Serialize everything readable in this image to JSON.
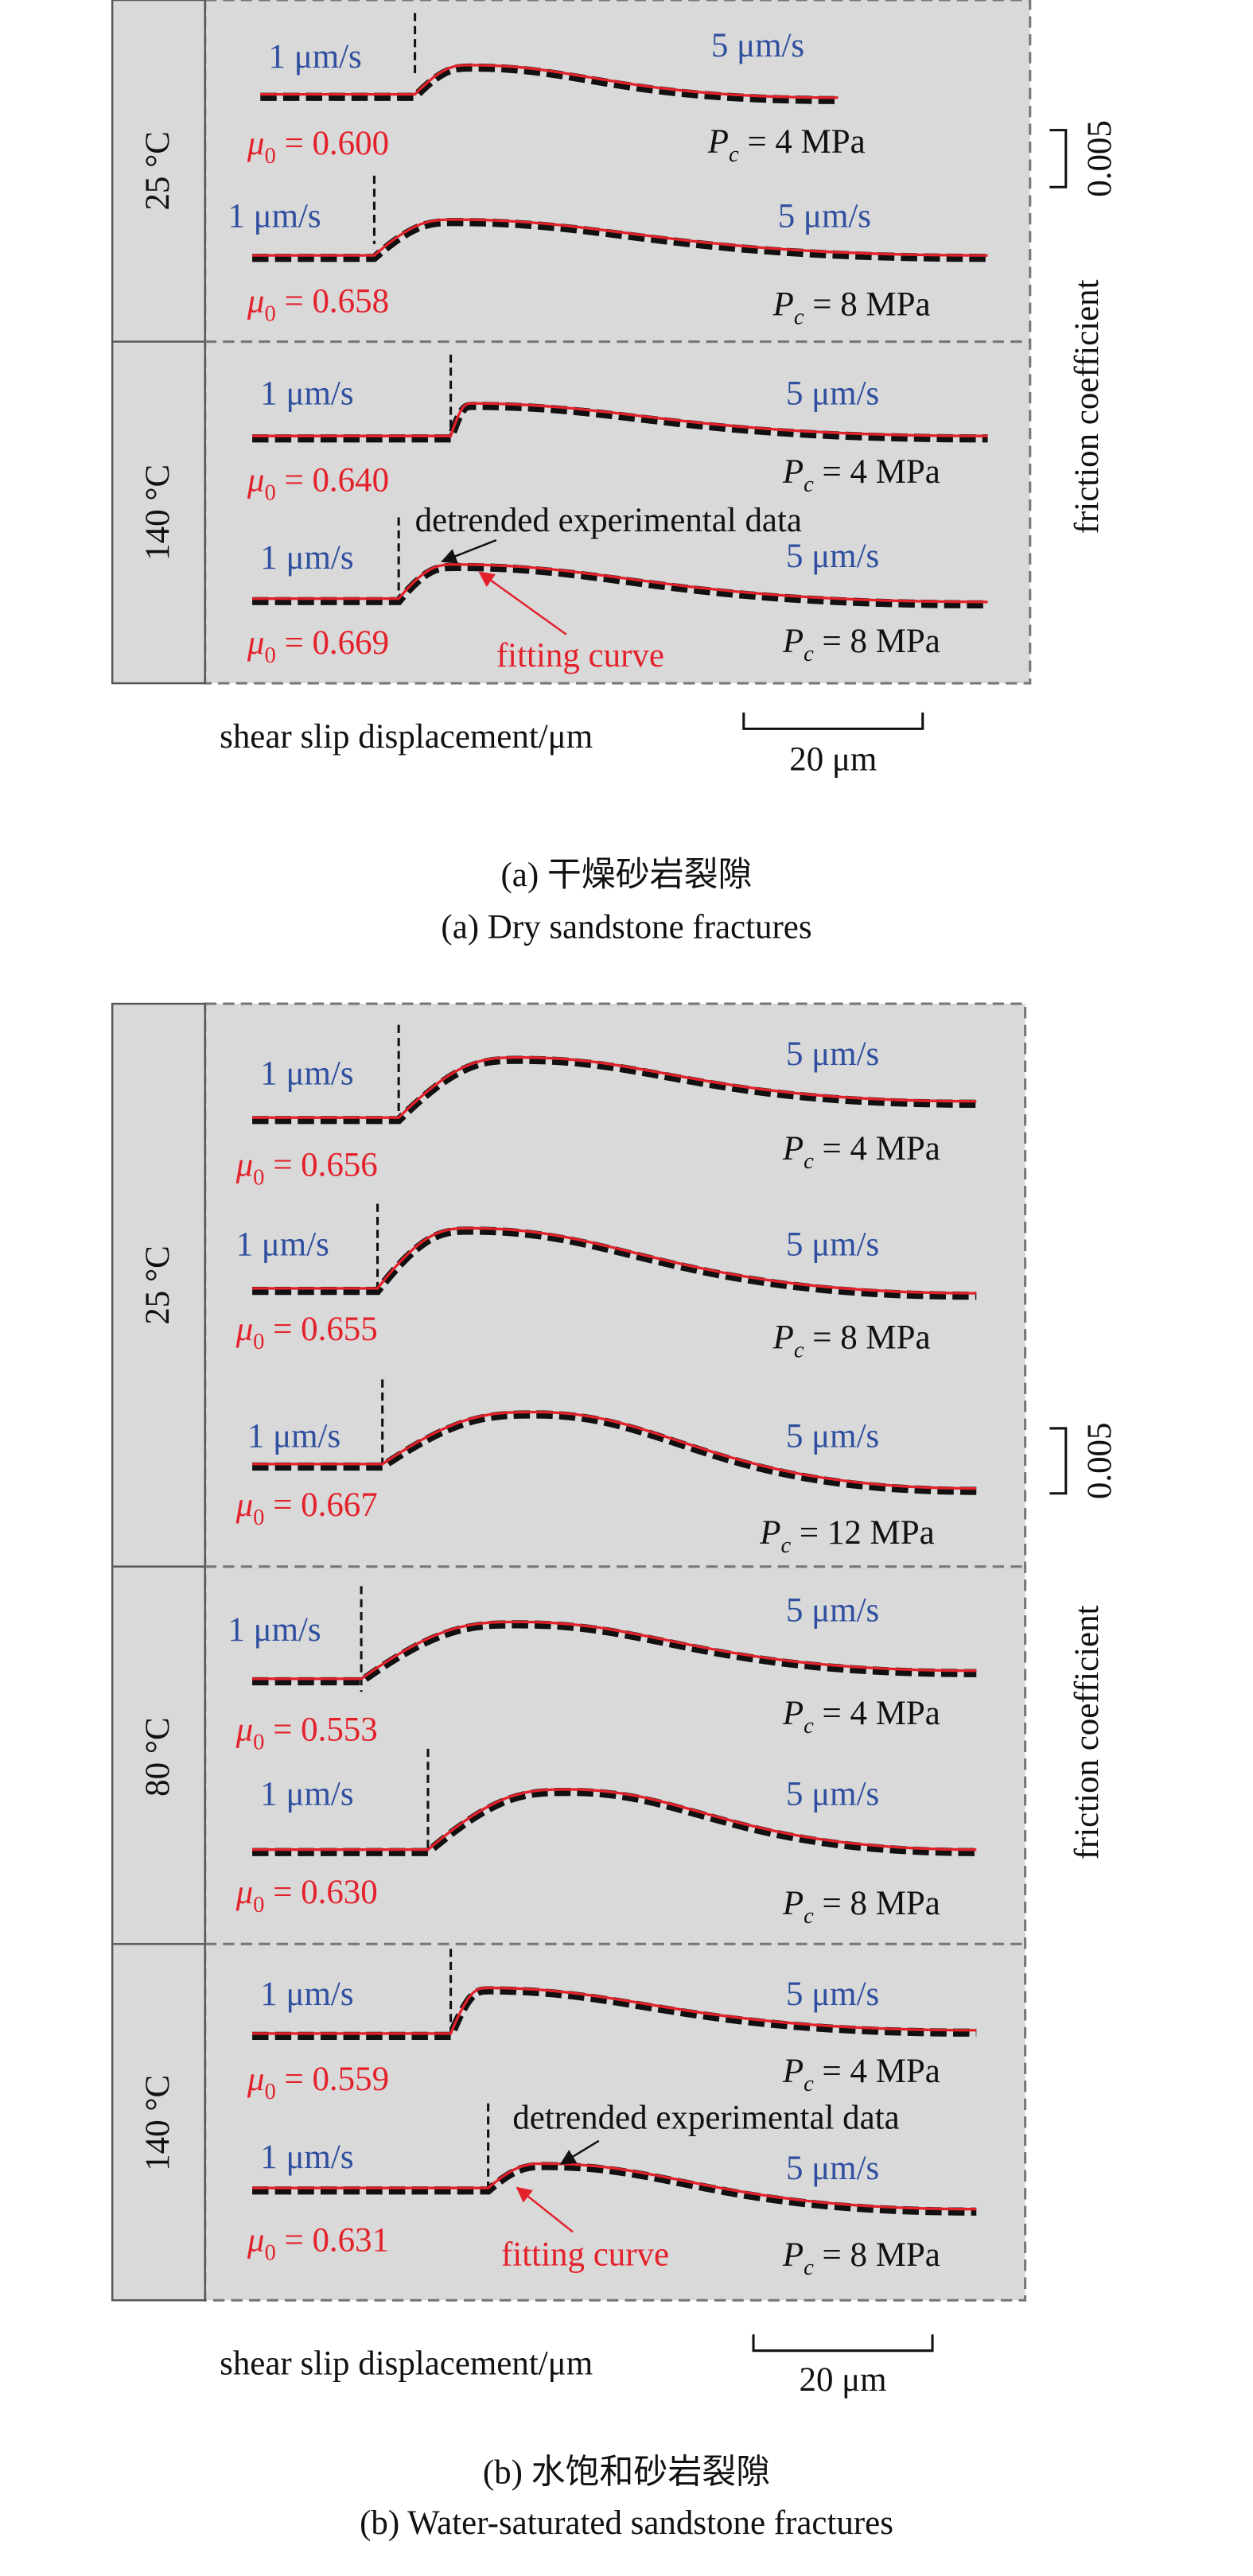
{
  "figures": [
    {
      "caption_cn": "(a) 干燥砂岩裂隙",
      "caption_en": "(a) Dry sandstone fractures",
      "x_label": "shear slip displacement/μm",
      "scale_x": "20 μm",
      "scale_y": "0.005",
      "y_label": "friction coefficient",
      "annotation_data": "detrended experimental data",
      "annotation_fit": "fitting curve",
      "groups": [
        {
          "temperature": "25 °C",
          "rows": [
            {
              "rate1": "1 μm/s",
              "rate2": "5 μm/s",
              "mu": {
                "symbol": "μ",
                "sub": "0",
                "value": " = 0.600"
              },
              "pc": {
                "symbol": "P",
                "sub": "c",
                "value": " = 4 MPa"
              }
            },
            {
              "rate1": "1 μm/s",
              "rate2": "5 μm/s",
              "mu": {
                "symbol": "μ",
                "sub": "0",
                "value": " = 0.658"
              },
              "pc": {
                "symbol": "P",
                "sub": "c",
                "value": " = 8 MPa"
              }
            }
          ]
        },
        {
          "temperature": "140 °C",
          "rows": [
            {
              "rate1": "1 μm/s",
              "rate2": "5 μm/s",
              "mu": {
                "symbol": "μ",
                "sub": "0",
                "value": " = 0.640"
              },
              "pc": {
                "symbol": "P",
                "sub": "c",
                "value": " = 4 MPa"
              }
            },
            {
              "rate1": "1 μm/s",
              "rate2": "5 μm/s",
              "mu": {
                "symbol": "μ",
                "sub": "0",
                "value": " = 0.669"
              },
              "pc": {
                "symbol": "P",
                "sub": "c",
                "value": " = 8 MPa"
              }
            }
          ]
        }
      ]
    },
    {
      "caption_cn": "(b) 水饱和砂岩裂隙",
      "caption_en": "(b) Water-saturated sandstone fractures",
      "x_label": "shear slip displacement/μm",
      "scale_x": "20 μm",
      "scale_y": "0.005",
      "y_label": "friction coefficient",
      "annotation_data": "detrended experimental data",
      "annotation_fit": "fitting curve",
      "groups": [
        {
          "temperature": "25 °C",
          "rows": [
            {
              "rate1": "1 μm/s",
              "rate2": "5 μm/s",
              "mu": {
                "symbol": "μ",
                "sub": "0",
                "value": " = 0.656"
              },
              "pc": {
                "symbol": "P",
                "sub": "c",
                "value": " = 4 MPa"
              }
            },
            {
              "rate1": "1 μm/s",
              "rate2": "5 μm/s",
              "mu": {
                "symbol": "μ",
                "sub": "0",
                "value": " = 0.655"
              },
              "pc": {
                "symbol": "P",
                "sub": "c",
                "value": " = 8 MPa"
              }
            },
            {
              "rate1": "1 μm/s",
              "rate2": "5 μm/s",
              "mu": {
                "symbol": "μ",
                "sub": "0",
                "value": " = 0.667"
              },
              "pc": {
                "symbol": "P",
                "sub": "c",
                "value": " = 12 MPa"
              }
            }
          ]
        },
        {
          "temperature": "80 °C",
          "rows": [
            {
              "rate1": "1 μm/s",
              "rate2": "5 μm/s",
              "mu": {
                "symbol": "μ",
                "sub": "0",
                "value": " = 0.553"
              },
              "pc": {
                "symbol": "P",
                "sub": "c",
                "value": " = 4 MPa"
              }
            },
            {
              "rate1": "1 μm/s",
              "rate2": "5 μm/s",
              "mu": {
                "symbol": "μ",
                "sub": "0",
                "value": " = 0.630"
              },
              "pc": {
                "symbol": "P",
                "sub": "c",
                "value": " = 8 MPa"
              }
            }
          ]
        },
        {
          "temperature": "140 °C",
          "rows": [
            {
              "rate1": "1 μm/s",
              "rate2": "5 μm/s",
              "mu": {
                "symbol": "μ",
                "sub": "0",
                "value": " = 0.559"
              },
              "pc": {
                "symbol": "P",
                "sub": "c",
                "value": " = 4 MPa"
              }
            },
            {
              "rate1": "1 μm/s",
              "rate2": "5 μm/s",
              "mu": {
                "symbol": "μ",
                "sub": "0",
                "value": " = 0.631"
              },
              "pc": {
                "symbol": "P",
                "sub": "c",
                "value": " = 8 MPa"
              }
            }
          ]
        }
      ]
    }
  ]
}
